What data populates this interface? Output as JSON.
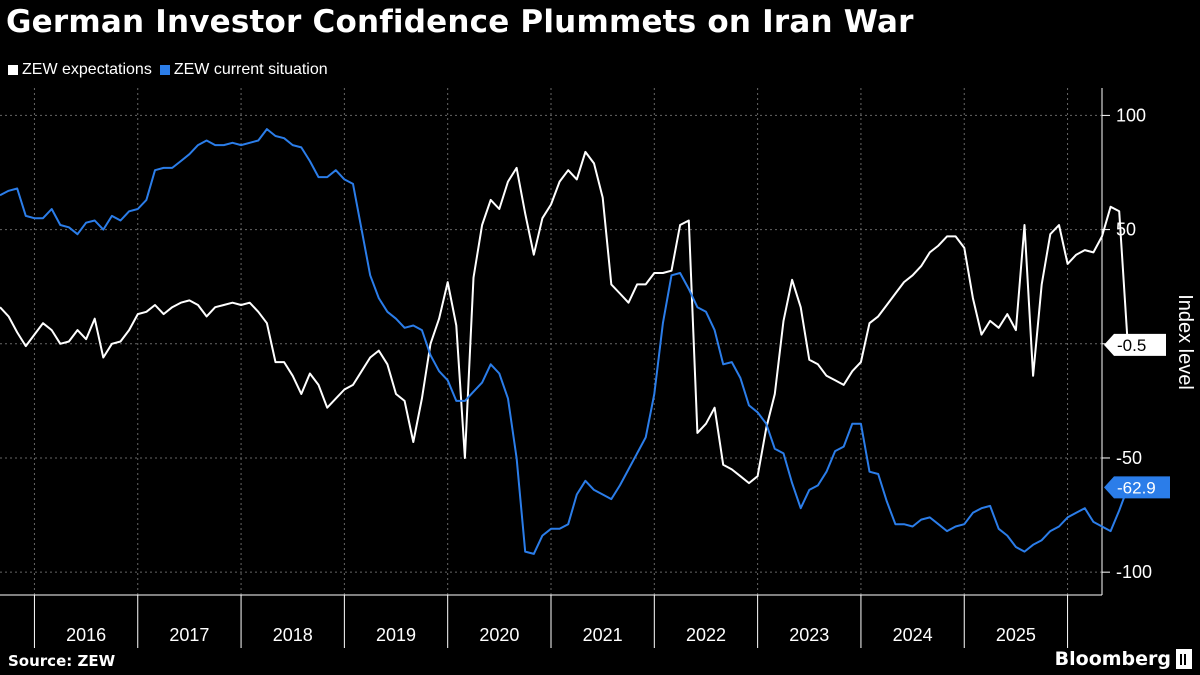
{
  "title": "German Investor Confidence Plummets on Iran War",
  "source": "Source: ZEW",
  "brand": "Bloomberg",
  "colors": {
    "background": "#000000",
    "expectations": "#ffffff",
    "current": "#2b7de9",
    "grid": "#666666"
  },
  "legend": [
    {
      "label": "ZEW expectations",
      "color": "#ffffff"
    },
    {
      "label": "ZEW current situation",
      "color": "#2b7de9"
    }
  ],
  "chart_data": {
    "type": "line",
    "title": "German Investor Confidence Plummets on Iran War",
    "ylabel": "Index level",
    "xlabel": "",
    "ylim": [
      -110,
      112
    ],
    "yticks": [
      100,
      50,
      0,
      -50,
      -100
    ],
    "ytick_labels": [
      "100",
      "50",
      "",
      "-50",
      "-100"
    ],
    "xlim": [
      "2015-09",
      "2026-05"
    ],
    "x_tick_labels": [
      "2016",
      "2017",
      "2018",
      "2019",
      "2020",
      "2021",
      "2022",
      "2023",
      "2024",
      "2025"
    ],
    "x_year_boundaries": [
      "2016-01",
      "2017-01",
      "2018-01",
      "2019-01",
      "2020-01",
      "2021-01",
      "2022-01",
      "2023-01",
      "2024-01",
      "2025-01",
      "2026-01"
    ],
    "grid": true,
    "legend_position": "top-left",
    "start_month": "2015-09",
    "series": [
      {
        "name": "ZEW expectations",
        "color": "#ffffff",
        "end_label": "-0.5",
        "values": [
          16,
          12,
          5,
          -1,
          4,
          9,
          6,
          0,
          1,
          6,
          2,
          11,
          -6,
          0,
          1,
          6,
          13,
          14,
          17,
          13,
          16,
          18,
          19,
          17,
          12,
          16,
          17,
          18,
          17,
          18,
          14,
          9,
          -8,
          -8,
          -14,
          -22,
          -13,
          -18,
          -28,
          -24,
          -20,
          -18,
          -12,
          -6,
          -3,
          -9,
          -22,
          -25,
          -43,
          -24,
          0,
          11,
          27,
          8,
          -50,
          29,
          52,
          63,
          59,
          71,
          77,
          57,
          39,
          55,
          61,
          71,
          76,
          72,
          84,
          79,
          64,
          26,
          22,
          18,
          26,
          26,
          31,
          31,
          32,
          52,
          54,
          -39,
          -35,
          -28,
          -53,
          -55,
          -58,
          -61,
          -58,
          -37,
          -22,
          10,
          28,
          16,
          -7,
          -9,
          -14,
          -16,
          -18,
          -12,
          -8,
          9,
          12,
          17,
          22,
          27,
          30,
          34,
          40,
          43,
          47,
          47,
          42,
          20,
          4,
          10,
          7,
          13,
          6,
          52,
          -14,
          26,
          48,
          52,
          35,
          39,
          41,
          40,
          47,
          60,
          58,
          -0.5
        ]
      },
      {
        "name": "ZEW current situation",
        "color": "#2b7de9",
        "end_label": "-62.9",
        "values": [
          65,
          67,
          68,
          56,
          55,
          55,
          59,
          52,
          51,
          48,
          53,
          54,
          50,
          56,
          54,
          58,
          59,
          63,
          76,
          77,
          77,
          80,
          83,
          87,
          89,
          87,
          87,
          88,
          87,
          88,
          89,
          94,
          91,
          90,
          87,
          86,
          80,
          73,
          73,
          76,
          72,
          70,
          50,
          30,
          20,
          14,
          11,
          7,
          8,
          6,
          -5,
          -12,
          -16,
          -25,
          -25,
          -21,
          -17,
          -9,
          -13,
          -24,
          -50,
          -91,
          -92,
          -84,
          -81,
          -81,
          -79,
          -66,
          -60,
          -64,
          -66,
          -68,
          -62,
          -55,
          -48,
          -41,
          -22,
          9,
          30,
          31,
          24,
          16,
          14,
          6,
          -9,
          -8,
          -15,
          -27,
          -30,
          -35,
          -46,
          -48,
          -61,
          -72,
          -64,
          -62,
          -56,
          -47,
          -45,
          -35,
          -35,
          -56,
          -57,
          -69,
          -79,
          -79,
          -80,
          -77,
          -76,
          -79,
          -82,
          -80,
          -79,
          -74,
          -72,
          -71,
          -81,
          -84,
          -89,
          -91,
          -88,
          -86,
          -82,
          -80,
          -76,
          -74,
          -72,
          -78,
          -80,
          -82,
          -73,
          -62.9
        ]
      }
    ]
  }
}
